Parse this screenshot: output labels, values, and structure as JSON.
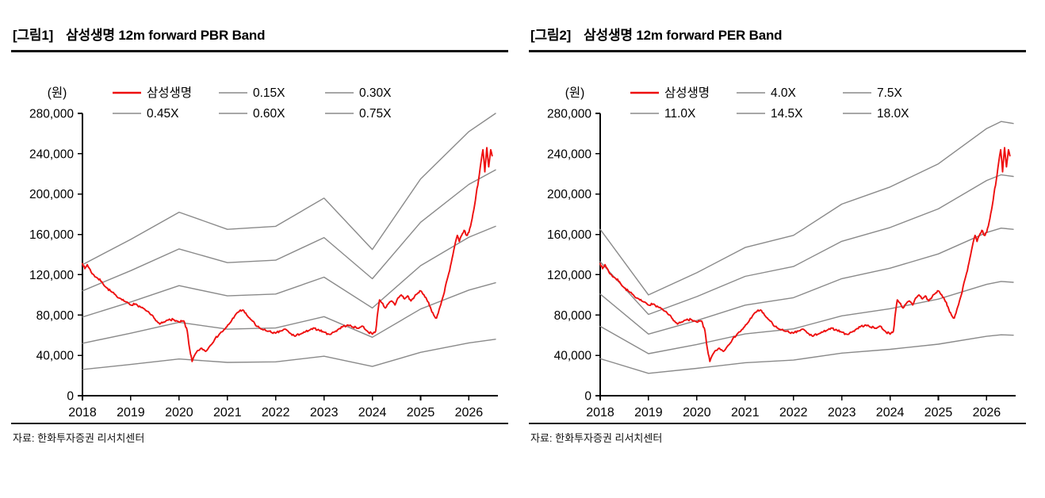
{
  "page": {
    "background": "#ffffff"
  },
  "shared": {
    "price": {
      "name": "삼성생명",
      "color": "#ee0f0f",
      "noise": 1200,
      "x": [
        2018.0,
        2018.05,
        2018.1,
        2018.2,
        2018.3,
        2018.4,
        2018.5,
        2018.6,
        2018.7,
        2018.8,
        2018.9,
        2019.0,
        2019.1,
        2019.2,
        2019.3,
        2019.4,
        2019.5,
        2019.6,
        2019.7,
        2019.8,
        2019.9,
        2020.0,
        2020.1,
        2020.17,
        2020.22,
        2020.27,
        2020.33,
        2020.4,
        2020.47,
        2020.55,
        2020.65,
        2020.75,
        2020.85,
        2020.95,
        2021.05,
        2021.15,
        2021.25,
        2021.32,
        2021.4,
        2021.5,
        2021.6,
        2021.7,
        2021.85,
        2022.0,
        2022.1,
        2022.2,
        2022.3,
        2022.4,
        2022.5,
        2022.6,
        2022.7,
        2022.8,
        2022.9,
        2023.0,
        2023.1,
        2023.2,
        2023.3,
        2023.4,
        2023.5,
        2023.6,
        2023.7,
        2023.8,
        2023.9,
        2024.0,
        2024.07,
        2024.1,
        2024.15,
        2024.2,
        2024.27,
        2024.33,
        2024.4,
        2024.47,
        2024.53,
        2024.6,
        2024.67,
        2024.73,
        2024.8,
        2024.87,
        2024.93,
        2025.0,
        2025.07,
        2025.13,
        2025.2,
        2025.27,
        2025.33,
        2025.4,
        2025.47,
        2025.53,
        2025.6,
        2025.67,
        2025.72,
        2025.76,
        2025.8,
        2025.85,
        2025.9,
        2025.95,
        2026.0,
        2026.05,
        2026.1,
        2026.15,
        2026.2,
        2026.25,
        2026.29,
        2026.33,
        2026.37,
        2026.41,
        2026.45,
        2026.48
      ],
      "y": [
        131000,
        126000,
        130000,
        121000,
        117000,
        113000,
        107000,
        103000,
        99000,
        96000,
        93000,
        90000,
        91000,
        88000,
        85000,
        81000,
        76000,
        71000,
        73000,
        76000,
        75000,
        73000,
        74000,
        64000,
        46000,
        34000,
        41000,
        45000,
        47000,
        44000,
        50000,
        57000,
        62000,
        66000,
        72000,
        79000,
        84000,
        85000,
        80000,
        75000,
        69000,
        66000,
        64000,
        62000,
        64000,
        66000,
        62000,
        59000,
        61000,
        63000,
        65000,
        67000,
        65000,
        63000,
        61000,
        63000,
        66000,
        69000,
        70000,
        68000,
        67000,
        69000,
        64000,
        61000,
        64000,
        78000,
        95000,
        92000,
        87000,
        91000,
        94000,
        90000,
        97000,
        100000,
        96000,
        99000,
        94000,
        98000,
        101000,
        104000,
        100000,
        95000,
        88000,
        80000,
        77000,
        88000,
        99000,
        112000,
        124000,
        140000,
        152000,
        159000,
        153000,
        159000,
        164000,
        159000,
        162000,
        172000,
        184000,
        200000,
        214000,
        232000,
        244000,
        222000,
        246000,
        227000,
        244000,
        238000
      ]
    }
  },
  "charts": [
    {
      "tag": "[그림1]",
      "title": "삼성생명 12m forward PBR Band",
      "unit_label": "(원)",
      "source": "자료: 한화투자증권 리서치센터",
      "chart_data": {
        "type": "line",
        "title": "삼성생명 12m forward PBR Band",
        "xlabel": "",
        "ylabel": "(원)",
        "grid": false,
        "legend_position": "top",
        "x_range": [
          2018,
          2026.6
        ],
        "x_ticks": [
          2018,
          2019,
          2020,
          2021,
          2022,
          2023,
          2024,
          2025,
          2026
        ],
        "ylim": [
          0,
          280000
        ],
        "y_ticks": [
          0,
          40000,
          80000,
          120000,
          160000,
          200000,
          240000,
          280000
        ],
        "band_color": "#8a8a8a",
        "legend_rows": [
          [
            "삼성생명",
            "0.15X",
            "0.30X"
          ],
          [
            "0.45X",
            "0.60X",
            "0.75X"
          ]
        ],
        "series": [
          {
            "ref": "shared.price"
          },
          {
            "name": "0.15X",
            "color": "#8a8a8a",
            "x": [
              2018,
              2019,
              2020,
              2021,
              2022,
              2023,
              2024,
              2025,
              2026,
              2026.55
            ],
            "y": [
              26000,
              31000,
              36400,
              33000,
              33600,
              39200,
              29000,
              43000,
              52400,
              56000
            ]
          },
          {
            "name": "0.30X",
            "color": "#8a8a8a",
            "x": [
              2018,
              2019,
              2020,
              2021,
              2022,
              2023,
              2024,
              2025,
              2026,
              2026.55
            ],
            "y": [
              52000,
              62000,
              72800,
              66000,
              67200,
              78400,
              58000,
              86000,
              104800,
              112000
            ]
          },
          {
            "name": "0.45X",
            "color": "#8a8a8a",
            "x": [
              2018,
              2019,
              2020,
              2021,
              2022,
              2023,
              2024,
              2025,
              2026,
              2026.55
            ],
            "y": [
              78000,
              93000,
              109200,
              99000,
              100800,
              117600,
              87000,
              129000,
              157200,
              168000
            ]
          },
          {
            "name": "0.60X",
            "color": "#8a8a8a",
            "x": [
              2018,
              2019,
              2020,
              2021,
              2022,
              2023,
              2024,
              2025,
              2026,
              2026.55
            ],
            "y": [
              104000,
              124000,
              145600,
              132000,
              134400,
              156800,
              116000,
              172000,
              209600,
              224000
            ]
          },
          {
            "name": "0.75X",
            "color": "#8a8a8a",
            "x": [
              2018,
              2019,
              2020,
              2021,
              2022,
              2023,
              2024,
              2025,
              2026,
              2026.55
            ],
            "y": [
              130000,
              155000,
              182000,
              165000,
              168000,
              196000,
              145000,
              215000,
              262000,
              280000
            ]
          }
        ]
      }
    },
    {
      "tag": "[그림2]",
      "title": "삼성생명 12m forward PER Band",
      "unit_label": "(원)",
      "source": "자료: 한화투자증권 리서치센터",
      "chart_data": {
        "type": "line",
        "title": "삼성생명 12m forward PER Band",
        "xlabel": "",
        "ylabel": "(원)",
        "grid": false,
        "legend_position": "top",
        "x_range": [
          2018,
          2026.6
        ],
        "x_ticks": [
          2018,
          2019,
          2020,
          2021,
          2022,
          2023,
          2024,
          2025,
          2026
        ],
        "ylim": [
          0,
          280000
        ],
        "y_ticks": [
          0,
          40000,
          80000,
          120000,
          160000,
          200000,
          240000,
          280000
        ],
        "band_color": "#8a8a8a",
        "legend_rows": [
          [
            "삼성생명",
            "4.0X",
            "7.5X"
          ],
          [
            "11.0X",
            "14.5X",
            "18.0X"
          ]
        ],
        "series": [
          {
            "ref": "shared.price"
          },
          {
            "name": "4.0X",
            "color": "#8a8a8a",
            "x": [
              2018,
              2019,
              2020,
              2021,
              2022,
              2023,
              2024,
              2025,
              2026,
              2026.3,
              2026.55
            ],
            "y": [
              36700,
              22200,
              27100,
              32700,
              35300,
              42200,
              46000,
              51100,
              58900,
              60400,
              60000
            ]
          },
          {
            "name": "7.5X",
            "color": "#8a8a8a",
            "x": [
              2018,
              2019,
              2020,
              2021,
              2022,
              2023,
              2024,
              2025,
              2026,
              2026.3,
              2026.55
            ],
            "y": [
              68800,
              41700,
              50800,
              61300,
              66300,
              79200,
              86300,
              95800,
              110400,
              113300,
              112500
            ]
          },
          {
            "name": "11.0X",
            "color": "#8a8a8a",
            "x": [
              2018,
              2019,
              2020,
              2021,
              2022,
              2023,
              2024,
              2025,
              2026,
              2026.3,
              2026.55
            ],
            "y": [
              100800,
              61100,
              74600,
              89800,
              97200,
              116100,
              126500,
              140600,
              161900,
              166200,
              165000
            ]
          },
          {
            "name": "14.5X",
            "color": "#8a8a8a",
            "x": [
              2018,
              2019,
              2020,
              2021,
              2022,
              2023,
              2024,
              2025,
              2026,
              2026.3,
              2026.55
            ],
            "y": [
              132900,
              80600,
              98300,
              118400,
              128100,
              153100,
              166800,
              185300,
              213500,
              219100,
              217500
            ]
          },
          {
            "name": "18.0X",
            "color": "#8a8a8a",
            "x": [
              2018,
              2019,
              2020,
              2021,
              2022,
              2023,
              2024,
              2025,
              2026,
              2026.3,
              2026.55
            ],
            "y": [
              165000,
              100000,
              122000,
              147000,
              159000,
              190000,
              207000,
              230000,
              265000,
              272000,
              270000
            ]
          }
        ]
      }
    }
  ]
}
